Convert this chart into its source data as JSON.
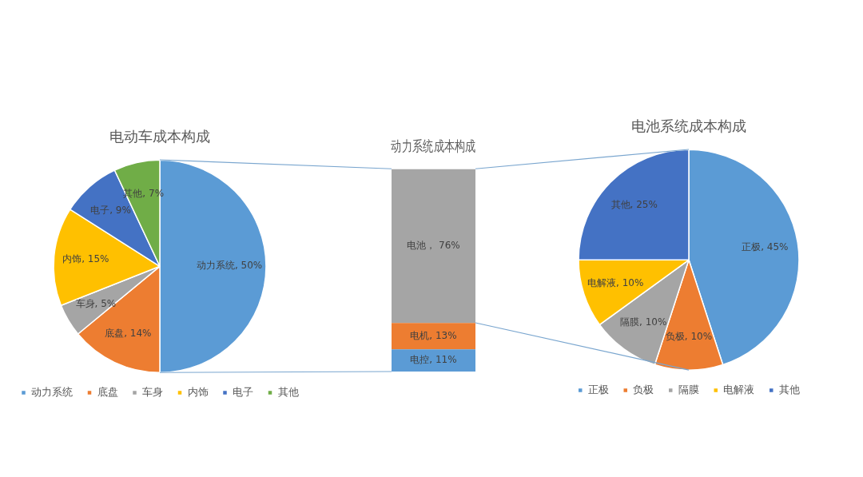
{
  "chart_data": [
    {
      "type": "pie",
      "title": "电动车成本构成",
      "categories": [
        "动力系统",
        "底盘",
        "车身",
        "内饰",
        "电子",
        "其他"
      ],
      "values": [
        50,
        14,
        5,
        15,
        9,
        7
      ],
      "colors": [
        "#5b9bd5",
        "#ed7d31",
        "#a5a5a5",
        "#ffc000",
        "#4472c4",
        "#70ad47"
      ],
      "value_labels": [
        "动力系统, 50%",
        "底盘, 14%",
        "车身, 5%",
        "内饰, 15%",
        "电子, 9%",
        "其他, 7%"
      ],
      "legend": "bottom"
    },
    {
      "type": "bar",
      "title": "动力系统成本构成",
      "categories": [
        null
      ],
      "stacked": true,
      "tick_labels": false,
      "series": [
        {
          "color": "#5b9bd5",
          "values": [
            11
          ],
          "value_labels": [
            "电控, 11%"
          ]
        },
        {
          "color": "#ed7d31",
          "values": [
            13
          ],
          "value_labels": [
            "电机, 13%"
          ]
        },
        {
          "color": "#a5a5a5",
          "values": [
            76
          ],
          "value_labels": [
            "电池， 76%"
          ]
        }
      ]
    },
    {
      "type": "pie",
      "title": "电池系统成本构成",
      "categories": [
        "正极",
        "负极",
        "隔膜",
        "电解液",
        "其他"
      ],
      "values": [
        45,
        10,
        10,
        10,
        25
      ],
      "colors": [
        "#5b9bd5",
        "#ed7d31",
        "#a5a5a5",
        "#ffc000",
        "#4472c4"
      ],
      "value_labels": [
        "正极, 45%",
        "负极, 10%",
        "隔膜, 10%",
        "电解液, 10%",
        "其他, 25%"
      ],
      "legend": "bottom"
    }
  ]
}
